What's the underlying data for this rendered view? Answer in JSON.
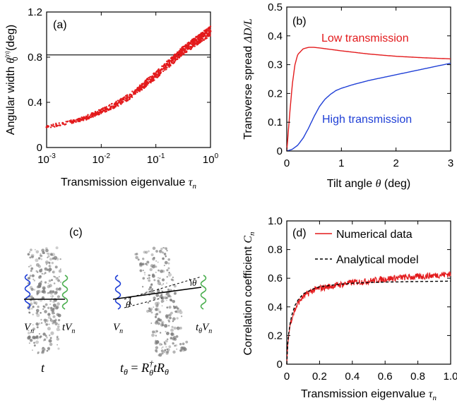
{
  "chart_data": [
    {
      "panel": "a",
      "panel_label": "(a)",
      "type": "scatter",
      "xlabel": "Transmission eigenvalue τn",
      "ylabel": "Angular width θ0(n) (deg)",
      "xscale": "log",
      "xlim": [
        0.001,
        1
      ],
      "ylim": [
        0,
        1.2
      ],
      "xticks": [
        0.001,
        0.01,
        0.1,
        1
      ],
      "xtick_labels": [
        "10-3",
        "10-2",
        "10-1",
        "100"
      ],
      "yticks": [
        0,
        0.4,
        0.8,
        1.2
      ],
      "ytick_labels": [
        "0",
        "0.4",
        "0.8",
        "1.2"
      ],
      "reference_line_y": 0.82,
      "series": [
        {
          "color": "#e31a1c",
          "x": [
            0.001,
            0.0015,
            0.002,
            0.003,
            0.005,
            0.007,
            0.01,
            0.015,
            0.02,
            0.03,
            0.05,
            0.07,
            0.1,
            0.15,
            0.2,
            0.3,
            0.5,
            0.7,
            1.0
          ],
          "y": [
            0.18,
            0.2,
            0.21,
            0.23,
            0.26,
            0.29,
            0.32,
            0.36,
            0.39,
            0.44,
            0.52,
            0.58,
            0.64,
            0.72,
            0.77,
            0.85,
            0.93,
            0.98,
            1.03
          ]
        }
      ]
    },
    {
      "panel": "b",
      "panel_label": "(b)",
      "type": "line",
      "xlabel": "Tilt angle θ (deg)",
      "ylabel": "Transverse spread ΔD/L",
      "xlim": [
        0,
        3
      ],
      "ylim": [
        0,
        0.5
      ],
      "xticks": [
        0,
        1,
        2,
        3
      ],
      "xtick_labels": [
        "0",
        "1",
        "2",
        "3"
      ],
      "yticks": [
        0,
        0.1,
        0.2,
        0.3,
        0.4,
        0.5
      ],
      "ytick_labels": [
        "0",
        "0.1",
        "0.2",
        "0.3",
        "0.4",
        "0.5"
      ],
      "series": [
        {
          "name": "Low transmission",
          "color": "#e31a1c",
          "x": [
            0,
            0.05,
            0.1,
            0.15,
            0.2,
            0.3,
            0.4,
            0.5,
            0.6,
            0.8,
            1.0,
            1.5,
            2.0,
            2.5,
            3.0
          ],
          "y": [
            0,
            0.12,
            0.23,
            0.3,
            0.335,
            0.355,
            0.36,
            0.36,
            0.358,
            0.353,
            0.348,
            0.337,
            0.329,
            0.324,
            0.32
          ]
        },
        {
          "name": "High transmission",
          "color": "#1f3fd6",
          "x": [
            0,
            0.1,
            0.2,
            0.3,
            0.4,
            0.5,
            0.6,
            0.7,
            0.8,
            0.9,
            1.0,
            1.2,
            1.5,
            2.0,
            2.5,
            3.0
          ],
          "y": [
            0,
            0.006,
            0.02,
            0.045,
            0.08,
            0.12,
            0.155,
            0.18,
            0.197,
            0.21,
            0.218,
            0.23,
            0.245,
            0.265,
            0.285,
            0.305
          ]
        }
      ]
    },
    {
      "panel": "d",
      "panel_label": "(d)",
      "type": "line",
      "xlabel": "Transmission eigenvalue τn",
      "ylabel": "Correlation coefficient Cn",
      "xlim": [
        0,
        1
      ],
      "ylim": [
        0,
        1
      ],
      "xticks": [
        0,
        0.2,
        0.4,
        0.6,
        0.8,
        1.0
      ],
      "xtick_labels": [
        "0",
        "0.2",
        "0.4",
        "0.6",
        "0.8",
        "1.0"
      ],
      "yticks": [
        0,
        0.2,
        0.4,
        0.6,
        0.8,
        1.0
      ],
      "ytick_labels": [
        "0",
        "0.2",
        "0.4",
        "0.6",
        "0.8",
        "1.0"
      ],
      "legend_position": "top-right",
      "series": [
        {
          "name": "Numerical data",
          "color": "#e31a1c",
          "style": "solid",
          "x": [
            0,
            0.005,
            0.01,
            0.02,
            0.03,
            0.05,
            0.07,
            0.1,
            0.15,
            0.2,
            0.3,
            0.4,
            0.5,
            0.6,
            0.7,
            0.8,
            0.9,
            1.0
          ],
          "y": [
            0,
            0.12,
            0.19,
            0.27,
            0.32,
            0.38,
            0.43,
            0.47,
            0.51,
            0.53,
            0.55,
            0.57,
            0.58,
            0.595,
            0.605,
            0.61,
            0.62,
            0.63
          ]
        },
        {
          "name": "Analytical model",
          "color": "#000000",
          "style": "dashed",
          "x": [
            0,
            0.005,
            0.01,
            0.02,
            0.03,
            0.05,
            0.07,
            0.1,
            0.15,
            0.2,
            0.3,
            0.4,
            0.5,
            0.6,
            0.7,
            0.8,
            0.9,
            1.0
          ],
          "y": [
            0,
            0.13,
            0.2,
            0.28,
            0.34,
            0.41,
            0.45,
            0.49,
            0.52,
            0.54,
            0.555,
            0.565,
            0.57,
            0.573,
            0.575,
            0.577,
            0.578,
            0.58
          ]
        }
      ]
    }
  ],
  "diagram_c": {
    "panel_label": "(c)",
    "left_input_label": "Vn",
    "left_output_label": "tVn",
    "left_caption": "t",
    "right_input_label": "Vn",
    "right_output_label": "tθVn",
    "right_angle_label": "θ",
    "right_caption": "tθ = Rθ† t Rθ",
    "colors": {
      "input_wave": "#1f3fd6",
      "output_wave": "#4caf50",
      "medium": "#7a7a7a"
    }
  }
}
